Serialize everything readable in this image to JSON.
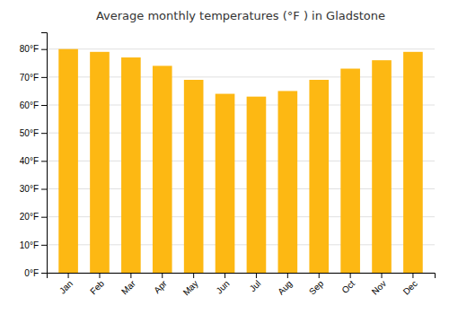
{
  "chart_data": {
    "type": "bar",
    "title": "Average monthly temperatures (°F ) in Gladstone",
    "categories": [
      "Jan",
      "Feb",
      "Mar",
      "Apr",
      "May",
      "Jun",
      "Jul",
      "Aug",
      "Sep",
      "Oct",
      "Nov",
      "Dec"
    ],
    "values": [
      80,
      79,
      77,
      74,
      69,
      64,
      63,
      65,
      69,
      73,
      76,
      79
    ],
    "color": "#FDB813",
    "ylim": [
      0,
      86
    ],
    "yticks": [
      {
        "value": 0,
        "label": "0°F"
      },
      {
        "value": 10,
        "label": "10°F"
      },
      {
        "value": 20,
        "label": "20°F"
      },
      {
        "value": 30,
        "label": "30°F"
      },
      {
        "value": 40,
        "label": "40°F"
      },
      {
        "value": 50,
        "label": "50°F"
      },
      {
        "value": 60,
        "label": "60°F"
      },
      {
        "value": 70,
        "label": "70°F"
      },
      {
        "value": 80,
        "label": "80°F"
      }
    ],
    "grid": true
  }
}
